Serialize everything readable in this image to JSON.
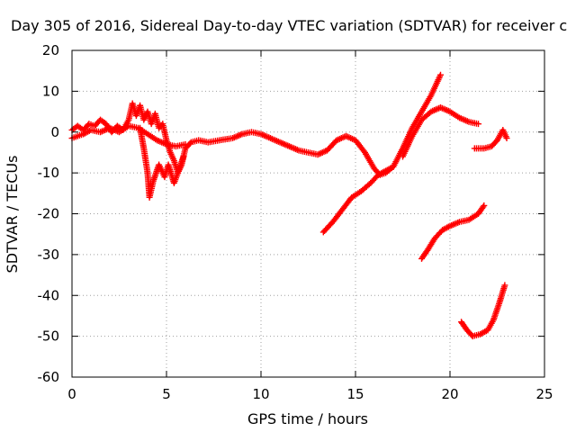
{
  "chart_data": {
    "type": "scatter",
    "title": "Day 305 of 2016, Sidereal Day-to-day VTEC variation (SDTVAR) for receiver c",
    "xlabel": "GPS time / hours",
    "ylabel": "SDTVAR / TECUs",
    "xlim": [
      0,
      25
    ],
    "ylim": [
      -60,
      20
    ],
    "xticks": [
      0,
      5,
      10,
      15,
      20,
      25
    ],
    "yticks": [
      -60,
      -50,
      -40,
      -30,
      -20,
      -10,
      0,
      10,
      20
    ],
    "grid": true,
    "legend": "none",
    "marker": "+",
    "color": "#ff0000",
    "series": [
      {
        "points": [
          [
            0.0,
            0.5
          ],
          [
            0.3,
            1.5
          ],
          [
            0.6,
            0.5
          ],
          [
            0.9,
            2.0
          ],
          [
            1.2,
            1.5
          ],
          [
            1.5,
            3.0
          ],
          [
            1.8,
            2.0
          ],
          [
            2.1,
            0.0
          ],
          [
            2.4,
            1.5
          ],
          [
            2.7,
            0.5
          ],
          [
            3.0,
            3.0
          ],
          [
            3.2,
            7.0
          ],
          [
            3.4,
            4.0
          ],
          [
            3.6,
            6.5
          ],
          [
            3.8,
            3.0
          ],
          [
            4.0,
            5.0
          ],
          [
            4.2,
            2.0
          ],
          [
            4.4,
            4.5
          ],
          [
            4.6,
            1.0
          ],
          [
            4.8,
            2.0
          ],
          [
            5.0,
            -2.0
          ],
          [
            5.2,
            -5.0
          ],
          [
            5.4,
            -7.0
          ],
          [
            5.6,
            -10.0
          ],
          [
            5.8,
            -8.0
          ],
          [
            6.0,
            -4.0
          ],
          [
            6.3,
            -2.5
          ],
          [
            6.7,
            -2.0
          ],
          [
            7.2,
            -2.5
          ],
          [
            7.8,
            -2.0
          ],
          [
            8.5,
            -1.5
          ],
          [
            9.0,
            -0.5
          ],
          [
            9.5,
            0.0
          ],
          [
            10.0,
            -0.5
          ],
          [
            10.5,
            -1.5
          ],
          [
            11.0,
            -2.5
          ],
          [
            11.5,
            -3.5
          ],
          [
            12.0,
            -4.5
          ],
          [
            12.5,
            -5.0
          ],
          [
            13.0,
            -5.5
          ],
          [
            13.5,
            -4.5
          ],
          [
            14.0,
            -2.0
          ],
          [
            14.5,
            -1.0
          ],
          [
            15.0,
            -2.0
          ],
          [
            15.5,
            -5.0
          ],
          [
            16.0,
            -9.0
          ],
          [
            16.3,
            -10.5
          ],
          [
            16.6,
            -10.0
          ],
          [
            17.0,
            -8.5
          ],
          [
            17.5,
            -4.0
          ],
          [
            18.0,
            1.0
          ],
          [
            18.5,
            5.0
          ],
          [
            19.0,
            9.0
          ],
          [
            19.3,
            12.0
          ],
          [
            19.5,
            14.0
          ]
        ]
      },
      {
        "points": [
          [
            3.6,
            1.0
          ],
          [
            3.8,
            -4.0
          ],
          [
            4.0,
            -10.0
          ],
          [
            4.1,
            -16.0
          ],
          [
            4.3,
            -12.0
          ],
          [
            4.6,
            -8.0
          ],
          [
            4.9,
            -11.0
          ],
          [
            5.1,
            -8.0
          ],
          [
            5.4,
            -12.5
          ],
          [
            5.6,
            -10.0
          ],
          [
            5.9,
            -6.0
          ]
        ]
      },
      {
        "points": [
          [
            0.0,
            -1.5
          ],
          [
            0.3,
            -1.0
          ],
          [
            0.6,
            -0.5
          ],
          [
            1.0,
            0.5
          ],
          [
            1.5,
            0.0
          ],
          [
            2.0,
            1.0
          ],
          [
            2.5,
            0.0
          ],
          [
            3.0,
            1.5
          ],
          [
            3.5,
            1.0
          ],
          [
            4.0,
            -0.5
          ],
          [
            4.5,
            -2.0
          ],
          [
            5.0,
            -3.0
          ],
          [
            5.5,
            -3.5
          ],
          [
            6.0,
            -3.0
          ]
        ]
      },
      {
        "points": [
          [
            13.3,
            -24.5
          ],
          [
            13.8,
            -22.0
          ],
          [
            14.3,
            -19.0
          ],
          [
            14.8,
            -16.0
          ],
          [
            15.3,
            -14.5
          ],
          [
            15.8,
            -12.5
          ],
          [
            16.2,
            -10.5
          ],
          [
            16.6,
            -9.5
          ],
          [
            17.0,
            -8.5
          ]
        ]
      },
      {
        "points": [
          [
            17.5,
            -6.0
          ],
          [
            18.0,
            -1.0
          ],
          [
            18.5,
            3.0
          ],
          [
            19.0,
            5.0
          ],
          [
            19.5,
            6.0
          ],
          [
            20.0,
            5.0
          ],
          [
            20.5,
            3.5
          ],
          [
            21.0,
            2.5
          ],
          [
            21.5,
            2.0
          ]
        ]
      },
      {
        "points": [
          [
            21.3,
            -4.0
          ],
          [
            21.8,
            -4.0
          ],
          [
            22.2,
            -3.5
          ],
          [
            22.5,
            -2.0
          ],
          [
            22.8,
            0.5
          ],
          [
            23.0,
            -1.5
          ]
        ]
      },
      {
        "points": [
          [
            18.5,
            -31.0
          ],
          [
            18.8,
            -29.0
          ],
          [
            19.2,
            -26.0
          ],
          [
            19.6,
            -24.0
          ],
          [
            20.0,
            -23.0
          ],
          [
            20.5,
            -22.0
          ],
          [
            21.0,
            -21.5
          ],
          [
            21.5,
            -20.0
          ],
          [
            21.8,
            -18.0
          ]
        ]
      },
      {
        "points": [
          [
            20.6,
            -46.5
          ],
          [
            20.9,
            -48.5
          ],
          [
            21.2,
            -50.0
          ],
          [
            21.6,
            -49.5
          ],
          [
            22.0,
            -48.5
          ],
          [
            22.3,
            -46.0
          ],
          [
            22.6,
            -42.0
          ],
          [
            22.9,
            -37.5
          ]
        ]
      }
    ]
  }
}
